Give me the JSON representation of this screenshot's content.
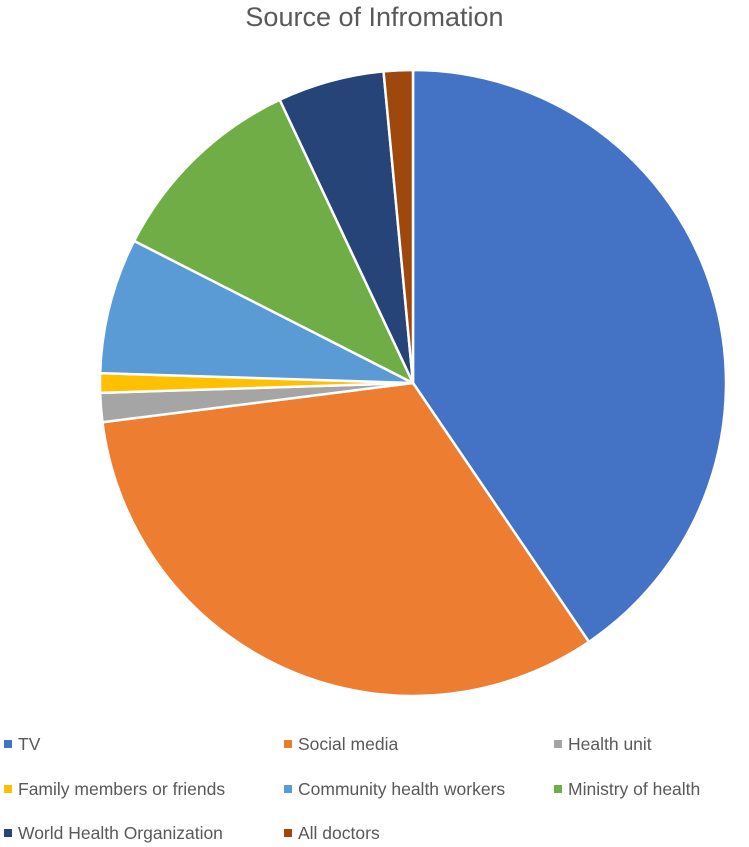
{
  "chart_data": {
    "type": "pie",
    "title": "Source of Infromation",
    "start_angle_deg": 0,
    "direction": "clockwise",
    "slices": [
      {
        "label": "TV",
        "value": 40.5,
        "color": "#4472C4"
      },
      {
        "label": "Social media",
        "value": 32.5,
        "color": "#ED7D31"
      },
      {
        "label": "Health unit",
        "value": 1.5,
        "color": "#A5A5A5"
      },
      {
        "label": "Family members or friends",
        "value": 1.0,
        "color": "#FFC000"
      },
      {
        "label": "Community health workers",
        "value": 7.0,
        "color": "#5B9BD5"
      },
      {
        "label": "Ministry of health",
        "value": 10.5,
        "color": "#70AD47"
      },
      {
        "label": "World Health Organization",
        "value": 5.5,
        "color": "#264478"
      },
      {
        "label": "All doctors",
        "value": 1.5,
        "color": "#9E480E"
      }
    ],
    "legend_position": "bottom"
  }
}
